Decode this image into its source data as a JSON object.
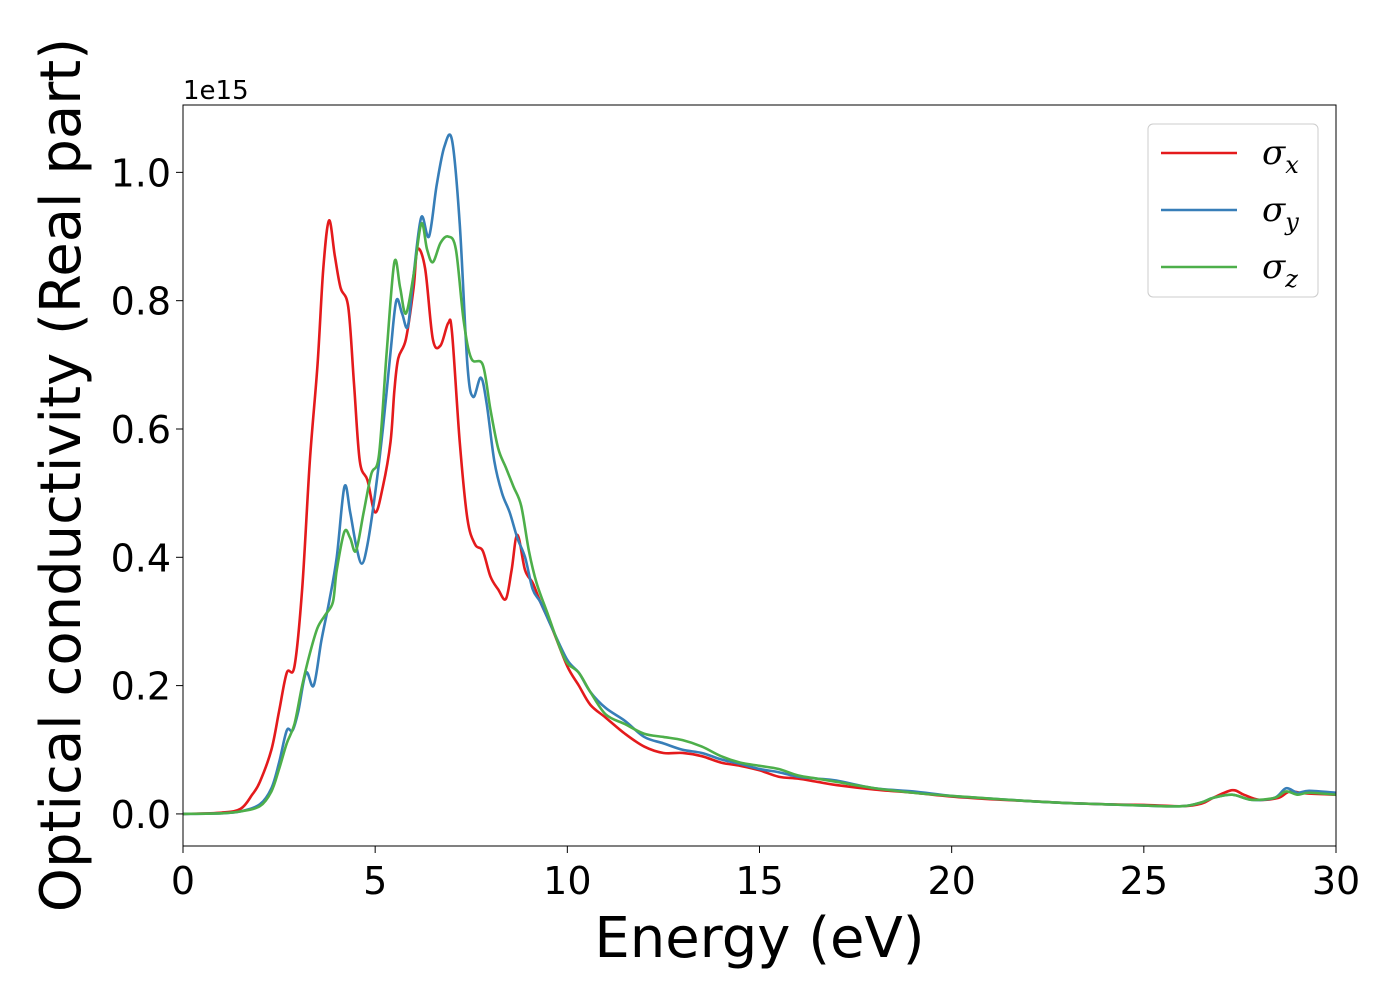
{
  "chart_data": {
    "type": "line",
    "title": "",
    "xlabel": "Energy (eV)",
    "ylabel": "Optical conductivity (Real part)",
    "y_offset_label": "1e15",
    "xlim": [
      0,
      30
    ],
    "ylim": [
      -0.05,
      1.105
    ],
    "x_ticks": [
      0,
      5,
      10,
      15,
      20,
      25,
      30
    ],
    "x_tick_labels": [
      "0",
      "5",
      "10",
      "15",
      "20",
      "25",
      "30"
    ],
    "y_ticks": [
      0.0,
      0.2,
      0.4,
      0.6,
      0.8,
      1.0
    ],
    "y_tick_labels": [
      "0.0",
      "0.2",
      "0.4",
      "0.6",
      "0.8",
      "1.0"
    ],
    "grid": false,
    "legend_position": "upper-right",
    "series": [
      {
        "name": "σx",
        "base": "σ",
        "sub": "x",
        "color": "#e41a1c",
        "points": [
          [
            0,
            0
          ],
          [
            1,
            0.002
          ],
          [
            1.5,
            0.008
          ],
          [
            1.8,
            0.03
          ],
          [
            2.0,
            0.05
          ],
          [
            2.3,
            0.1
          ],
          [
            2.5,
            0.16
          ],
          [
            2.7,
            0.22
          ],
          [
            2.9,
            0.23
          ],
          [
            3.1,
            0.35
          ],
          [
            3.3,
            0.55
          ],
          [
            3.5,
            0.7
          ],
          [
            3.65,
            0.85
          ],
          [
            3.8,
            0.925
          ],
          [
            3.95,
            0.87
          ],
          [
            4.1,
            0.82
          ],
          [
            4.3,
            0.79
          ],
          [
            4.45,
            0.67
          ],
          [
            4.6,
            0.55
          ],
          [
            4.8,
            0.52
          ],
          [
            5.0,
            0.47
          ],
          [
            5.2,
            0.51
          ],
          [
            5.4,
            0.58
          ],
          [
            5.5,
            0.66
          ],
          [
            5.6,
            0.71
          ],
          [
            5.8,
            0.74
          ],
          [
            6.0,
            0.82
          ],
          [
            6.1,
            0.88
          ],
          [
            6.3,
            0.85
          ],
          [
            6.5,
            0.74
          ],
          [
            6.7,
            0.73
          ],
          [
            6.9,
            0.765
          ],
          [
            7.0,
            0.75
          ],
          [
            7.2,
            0.58
          ],
          [
            7.4,
            0.46
          ],
          [
            7.6,
            0.42
          ],
          [
            7.8,
            0.41
          ],
          [
            8.0,
            0.37
          ],
          [
            8.2,
            0.35
          ],
          [
            8.4,
            0.335
          ],
          [
            8.55,
            0.38
          ],
          [
            8.7,
            0.435
          ],
          [
            8.9,
            0.38
          ],
          [
            9.1,
            0.36
          ],
          [
            9.3,
            0.33
          ],
          [
            9.6,
            0.29
          ],
          [
            10.0,
            0.23
          ],
          [
            10.3,
            0.2
          ],
          [
            10.6,
            0.17
          ],
          [
            11.0,
            0.15
          ],
          [
            11.5,
            0.125
          ],
          [
            12.0,
            0.105
          ],
          [
            12.5,
            0.095
          ],
          [
            13.0,
            0.095
          ],
          [
            13.5,
            0.09
          ],
          [
            14.0,
            0.08
          ],
          [
            14.5,
            0.075
          ],
          [
            15.0,
            0.068
          ],
          [
            15.5,
            0.058
          ],
          [
            16.0,
            0.055
          ],
          [
            16.5,
            0.05
          ],
          [
            17.0,
            0.045
          ],
          [
            18.0,
            0.038
          ],
          [
            19.0,
            0.033
          ],
          [
            20.0,
            0.027
          ],
          [
            21.0,
            0.023
          ],
          [
            22.0,
            0.02
          ],
          [
            23.0,
            0.017
          ],
          [
            24.0,
            0.015
          ],
          [
            25.0,
            0.014
          ],
          [
            26.0,
            0.012
          ],
          [
            26.5,
            0.016
          ],
          [
            26.8,
            0.025
          ],
          [
            27.3,
            0.037
          ],
          [
            27.6,
            0.03
          ],
          [
            28.0,
            0.022
          ],
          [
            28.5,
            0.025
          ],
          [
            28.8,
            0.035
          ],
          [
            29.2,
            0.032
          ],
          [
            30.0,
            0.03
          ]
        ]
      },
      {
        "name": "σy",
        "base": "σ",
        "sub": "y",
        "color": "#377eb8",
        "points": [
          [
            0,
            0
          ],
          [
            1,
            0.001
          ],
          [
            1.5,
            0.004
          ],
          [
            2.0,
            0.015
          ],
          [
            2.3,
            0.04
          ],
          [
            2.5,
            0.08
          ],
          [
            2.7,
            0.13
          ],
          [
            2.85,
            0.13
          ],
          [
            3.0,
            0.16
          ],
          [
            3.2,
            0.22
          ],
          [
            3.4,
            0.2
          ],
          [
            3.6,
            0.27
          ],
          [
            3.8,
            0.33
          ],
          [
            4.0,
            0.4
          ],
          [
            4.2,
            0.51
          ],
          [
            4.35,
            0.47
          ],
          [
            4.5,
            0.42
          ],
          [
            4.65,
            0.39
          ],
          [
            4.8,
            0.42
          ],
          [
            5.0,
            0.5
          ],
          [
            5.2,
            0.6
          ],
          [
            5.4,
            0.72
          ],
          [
            5.55,
            0.8
          ],
          [
            5.7,
            0.78
          ],
          [
            5.85,
            0.76
          ],
          [
            6.0,
            0.84
          ],
          [
            6.2,
            0.93
          ],
          [
            6.4,
            0.9
          ],
          [
            6.6,
            0.98
          ],
          [
            6.8,
            1.04
          ],
          [
            7.0,
            1.05
          ],
          [
            7.2,
            0.92
          ],
          [
            7.4,
            0.7
          ],
          [
            7.55,
            0.65
          ],
          [
            7.75,
            0.68
          ],
          [
            7.9,
            0.64
          ],
          [
            8.1,
            0.55
          ],
          [
            8.3,
            0.5
          ],
          [
            8.5,
            0.47
          ],
          [
            8.7,
            0.43
          ],
          [
            8.9,
            0.4
          ],
          [
            9.1,
            0.35
          ],
          [
            9.3,
            0.33
          ],
          [
            9.6,
            0.29
          ],
          [
            10.0,
            0.24
          ],
          [
            10.3,
            0.22
          ],
          [
            10.6,
            0.19
          ],
          [
            11.0,
            0.165
          ],
          [
            11.5,
            0.145
          ],
          [
            12.0,
            0.12
          ],
          [
            12.5,
            0.11
          ],
          [
            13.0,
            0.1
          ],
          [
            13.5,
            0.095
          ],
          [
            14.0,
            0.085
          ],
          [
            14.5,
            0.078
          ],
          [
            15.0,
            0.07
          ],
          [
            15.5,
            0.065
          ],
          [
            16.0,
            0.058
          ],
          [
            16.5,
            0.055
          ],
          [
            17.0,
            0.052
          ],
          [
            18.0,
            0.04
          ],
          [
            19.0,
            0.035
          ],
          [
            20.0,
            0.028
          ],
          [
            21.0,
            0.024
          ],
          [
            22.0,
            0.02
          ],
          [
            23.0,
            0.017
          ],
          [
            24.0,
            0.015
          ],
          [
            25.0,
            0.013
          ],
          [
            26.0,
            0.012
          ],
          [
            26.5,
            0.018
          ],
          [
            26.8,
            0.025
          ],
          [
            27.3,
            0.03
          ],
          [
            27.8,
            0.022
          ],
          [
            28.4,
            0.025
          ],
          [
            28.7,
            0.04
          ],
          [
            29.0,
            0.033
          ],
          [
            29.3,
            0.036
          ],
          [
            30.0,
            0.033
          ]
        ]
      },
      {
        "name": "σz",
        "base": "σ",
        "sub": "z",
        "color": "#4daf4a",
        "points": [
          [
            0,
            0
          ],
          [
            1,
            0.001
          ],
          [
            1.5,
            0.004
          ],
          [
            2.0,
            0.012
          ],
          [
            2.3,
            0.035
          ],
          [
            2.5,
            0.07
          ],
          [
            2.7,
            0.11
          ],
          [
            2.9,
            0.14
          ],
          [
            3.1,
            0.2
          ],
          [
            3.3,
            0.25
          ],
          [
            3.5,
            0.29
          ],
          [
            3.7,
            0.31
          ],
          [
            3.9,
            0.33
          ],
          [
            4.0,
            0.38
          ],
          [
            4.2,
            0.44
          ],
          [
            4.35,
            0.43
          ],
          [
            4.5,
            0.41
          ],
          [
            4.7,
            0.47
          ],
          [
            4.9,
            0.53
          ],
          [
            5.1,
            0.56
          ],
          [
            5.3,
            0.72
          ],
          [
            5.5,
            0.86
          ],
          [
            5.65,
            0.82
          ],
          [
            5.8,
            0.78
          ],
          [
            6.0,
            0.84
          ],
          [
            6.2,
            0.92
          ],
          [
            6.35,
            0.88
          ],
          [
            6.5,
            0.86
          ],
          [
            6.7,
            0.89
          ],
          [
            6.9,
            0.9
          ],
          [
            7.1,
            0.88
          ],
          [
            7.3,
            0.77
          ],
          [
            7.5,
            0.71
          ],
          [
            7.8,
            0.7
          ],
          [
            8.0,
            0.63
          ],
          [
            8.2,
            0.57
          ],
          [
            8.4,
            0.54
          ],
          [
            8.6,
            0.51
          ],
          [
            8.8,
            0.48
          ],
          [
            9.0,
            0.41
          ],
          [
            9.2,
            0.36
          ],
          [
            9.5,
            0.31
          ],
          [
            9.8,
            0.26
          ],
          [
            10.0,
            0.235
          ],
          [
            10.3,
            0.22
          ],
          [
            10.6,
            0.19
          ],
          [
            11.0,
            0.155
          ],
          [
            11.5,
            0.14
          ],
          [
            12.0,
            0.125
          ],
          [
            12.5,
            0.12
          ],
          [
            13.0,
            0.115
          ],
          [
            13.5,
            0.105
          ],
          [
            14.0,
            0.09
          ],
          [
            14.5,
            0.08
          ],
          [
            15.0,
            0.075
          ],
          [
            15.5,
            0.07
          ],
          [
            16.0,
            0.06
          ],
          [
            16.5,
            0.055
          ],
          [
            17.0,
            0.05
          ],
          [
            18.0,
            0.04
          ],
          [
            19.0,
            0.033
          ],
          [
            20.0,
            0.028
          ],
          [
            21.0,
            0.024
          ],
          [
            22.0,
            0.02
          ],
          [
            23.0,
            0.017
          ],
          [
            24.0,
            0.015
          ],
          [
            25.0,
            0.013
          ],
          [
            26.0,
            0.012
          ],
          [
            26.5,
            0.018
          ],
          [
            26.8,
            0.025
          ],
          [
            27.3,
            0.03
          ],
          [
            27.8,
            0.022
          ],
          [
            28.4,
            0.025
          ],
          [
            28.7,
            0.035
          ],
          [
            29.0,
            0.03
          ],
          [
            29.3,
            0.033
          ],
          [
            30.0,
            0.03
          ]
        ]
      }
    ]
  }
}
